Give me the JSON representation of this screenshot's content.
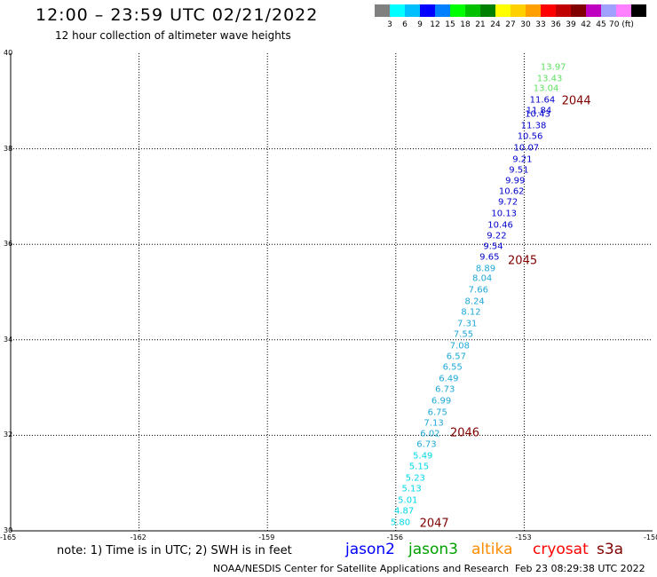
{
  "header": {
    "title": "12:00 – 23:59 UTC 02/21/2022",
    "subtitle": "12 hour collection of altimeter wave heights"
  },
  "colorbar": {
    "swatches": [
      "#808080",
      "#00ffff",
      "#00bfff",
      "#0000ff",
      "#0080ff",
      "#00ff00",
      "#00c000",
      "#008000",
      "#ffff00",
      "#ffd000",
      "#ffa000",
      "#ff0000",
      "#c00000",
      "#800000",
      "#c000c0",
      "#a0a0ff",
      "#ff80ff",
      "#000000"
    ],
    "labels": [
      "3",
      "6",
      "9",
      "12",
      "15",
      "18",
      "21",
      "24",
      "27",
      "30",
      "33",
      "36",
      "39",
      "42",
      "45",
      "70 (ft)"
    ]
  },
  "map": {
    "lon_range": [
      -165,
      -150
    ],
    "lat_range": [
      30,
      40
    ],
    "lon_ticks": [
      "-165",
      "-162",
      "-159",
      "-156",
      "-153",
      "-150"
    ],
    "lat_ticks": [
      "40",
      "38",
      "36",
      "34",
      "32",
      "30"
    ],
    "passes": [
      {
        "label": "2044",
        "lat": 39.0
      },
      {
        "label": "2045",
        "lat": 35.65
      },
      {
        "label": "2046",
        "lat": 32.05
      },
      {
        "label": "2047",
        "lat": 30.15
      }
    ],
    "readings": [
      {
        "text": "13.97",
        "lat": 39.7,
        "color": "#60e060"
      },
      {
        "text": "13.43",
        "lat": 39.47,
        "color": "#60e060"
      },
      {
        "text": "13.04",
        "lat": 39.25,
        "color": "#60e060"
      },
      {
        "text": "11.64",
        "lat": 39.02,
        "color": "#0000cd"
      },
      {
        "text": "11.84",
        "lat": 38.8,
        "color": "#0000cd"
      },
      {
        "text": "10.43",
        "lat": 38.72,
        "color": "#0000cd"
      },
      {
        "text": "11.38",
        "lat": 38.47,
        "color": "#0000cd"
      },
      {
        "text": "10.56",
        "lat": 38.25,
        "color": "#0000cd"
      },
      {
        "text": "10.07",
        "lat": 38.02,
        "color": "#0000cd"
      },
      {
        "text": "9.21",
        "lat": 37.77,
        "color": "#0000cd"
      },
      {
        "text": "9.51",
        "lat": 37.55,
        "color": "#0000cd"
      },
      {
        "text": "9.99",
        "lat": 37.32,
        "color": "#0000cd"
      },
      {
        "text": "10.62",
        "lat": 37.1,
        "color": "#0000cd"
      },
      {
        "text": "9.72",
        "lat": 36.87,
        "color": "#0000cd"
      },
      {
        "text": "10.13",
        "lat": 36.63,
        "color": "#0000cd"
      },
      {
        "text": "10.46",
        "lat": 36.4,
        "color": "#0000cd"
      },
      {
        "text": "9.22",
        "lat": 36.17,
        "color": "#0000cd"
      },
      {
        "text": "9.54",
        "lat": 35.95,
        "color": "#0000cd"
      },
      {
        "text": "9.65",
        "lat": 35.72,
        "color": "#0000cd"
      },
      {
        "text": "8.89",
        "lat": 35.48,
        "color": "#1ea8d8"
      },
      {
        "text": "8.04",
        "lat": 35.27,
        "color": "#1ea8d8"
      },
      {
        "text": "7.66",
        "lat": 35.03,
        "color": "#1ea8d8"
      },
      {
        "text": "8.24",
        "lat": 34.8,
        "color": "#1ea8d8"
      },
      {
        "text": "8.12",
        "lat": 34.57,
        "color": "#1ea8d8"
      },
      {
        "text": "7.31",
        "lat": 34.33,
        "color": "#1ea8d8"
      },
      {
        "text": "7.55",
        "lat": 34.1,
        "color": "#1ea8d8"
      },
      {
        "text": "7.08",
        "lat": 33.87,
        "color": "#1ea8d8"
      },
      {
        "text": "6.57",
        "lat": 33.65,
        "color": "#1ea8d8"
      },
      {
        "text": "6.55",
        "lat": 33.42,
        "color": "#1ea8d8"
      },
      {
        "text": "6.49",
        "lat": 33.18,
        "color": "#1ea8d8"
      },
      {
        "text": "6.73",
        "lat": 32.95,
        "color": "#1ea8d8"
      },
      {
        "text": "6.99",
        "lat": 32.72,
        "color": "#1ea8d8"
      },
      {
        "text": "6.75",
        "lat": 32.48,
        "color": "#1ea8d8"
      },
      {
        "text": "7.13",
        "lat": 32.25,
        "color": "#1ea8d8"
      },
      {
        "text": "6.02",
        "lat": 32.02,
        "color": "#1ea8d8"
      },
      {
        "text": "6.73",
        "lat": 31.8,
        "color": "#1ea8d8"
      },
      {
        "text": "5.49",
        "lat": 31.57,
        "color": "#00d8e8"
      },
      {
        "text": "5.15",
        "lat": 31.33,
        "color": "#00d8e8"
      },
      {
        "text": "5.23",
        "lat": 31.1,
        "color": "#00d8e8"
      },
      {
        "text": "5.13",
        "lat": 30.87,
        "color": "#00d8e8"
      },
      {
        "text": "5.01",
        "lat": 30.63,
        "color": "#00d8e8"
      },
      {
        "text": "4.87",
        "lat": 30.4,
        "color": "#00d8e8"
      },
      {
        "text": "5.80",
        "lat": 30.17,
        "color": "#00d8e8"
      }
    ]
  },
  "footer": {
    "note": "note: 1) Time is in UTC; 2) SWH is in feet",
    "satellites": [
      {
        "name": "jason2",
        "color": "#0000ff"
      },
      {
        "name": "jason3",
        "color": "#00a000"
      },
      {
        "name": "altika",
        "color": "#ff8c00"
      },
      {
        "name": "cryosat",
        "color": "#ff0000"
      },
      {
        "name": "s3a",
        "color": "#800000"
      }
    ],
    "credit": "NOAA/NESDIS Center for Satellite Applications and Research",
    "timestamp": "Feb 23 08:29:38 UTC 2022"
  }
}
